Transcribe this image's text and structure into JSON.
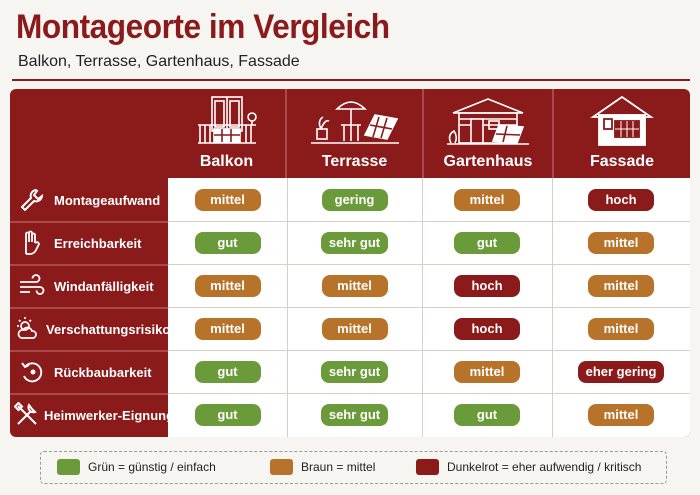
{
  "title": "Montageorte im Vergleich",
  "subtitle": "Balkon, Terrasse, Gartenhaus, Fassade",
  "colors": {
    "accent": "#8b1a1a",
    "green": "#6b9a3a",
    "brown": "#b8732a",
    "darkred": "#8b1a1a"
  },
  "columns": [
    {
      "label": "Balkon",
      "icon": "balcony-icon"
    },
    {
      "label": "Terrasse",
      "icon": "terrace-icon"
    },
    {
      "label": "Gartenhaus",
      "icon": "garden-house-icon"
    },
    {
      "label": "Fassade",
      "icon": "facade-house-icon"
    }
  ],
  "rows": [
    {
      "label": "Montageaufwand",
      "icon": "wrench-icon",
      "cells": [
        {
          "text": "mittel",
          "level": "brown"
        },
        {
          "text": "gering",
          "level": "green"
        },
        {
          "text": "mittel",
          "level": "brown"
        },
        {
          "text": "hoch",
          "level": "darkred"
        }
      ]
    },
    {
      "label": "Erreichbarkeit",
      "icon": "hand-icon",
      "cells": [
        {
          "text": "gut",
          "level": "green"
        },
        {
          "text": "sehr gut",
          "level": "green"
        },
        {
          "text": "gut",
          "level": "green"
        },
        {
          "text": "mittel",
          "level": "brown"
        }
      ]
    },
    {
      "label": "Windanfälligkeit",
      "icon": "wind-icon",
      "cells": [
        {
          "text": "mittel",
          "level": "brown"
        },
        {
          "text": "mittel",
          "level": "brown"
        },
        {
          "text": "hoch",
          "level": "darkred"
        },
        {
          "text": "mittel",
          "level": "brown"
        }
      ]
    },
    {
      "label": "Verschattungsrisiko",
      "icon": "sun-cloud-icon",
      "cells": [
        {
          "text": "mittel",
          "level": "brown"
        },
        {
          "text": "mittel",
          "level": "brown"
        },
        {
          "text": "hoch",
          "level": "darkred"
        },
        {
          "text": "mittel",
          "level": "brown"
        }
      ]
    },
    {
      "label": "Rückbaubarkeit",
      "icon": "undo-icon",
      "cells": [
        {
          "text": "gut",
          "level": "green"
        },
        {
          "text": "sehr gut",
          "level": "green"
        },
        {
          "text": "mittel",
          "level": "brown"
        },
        {
          "text": "eher gering",
          "level": "darkred"
        }
      ]
    },
    {
      "label": "Heimwerker-Eignung",
      "icon": "tools-icon",
      "cells": [
        {
          "text": "gut",
          "level": "green"
        },
        {
          "text": "sehr gut",
          "level": "green"
        },
        {
          "text": "gut",
          "level": "green"
        },
        {
          "text": "mittel",
          "level": "brown"
        }
      ]
    }
  ],
  "legend": [
    {
      "text": "Grün =  günstig / einfach",
      "level": "green"
    },
    {
      "text": "Braun = mittel",
      "level": "brown"
    },
    {
      "text": "Dunkelrot = eher aufwendig / kritisch",
      "level": "darkred"
    }
  ]
}
